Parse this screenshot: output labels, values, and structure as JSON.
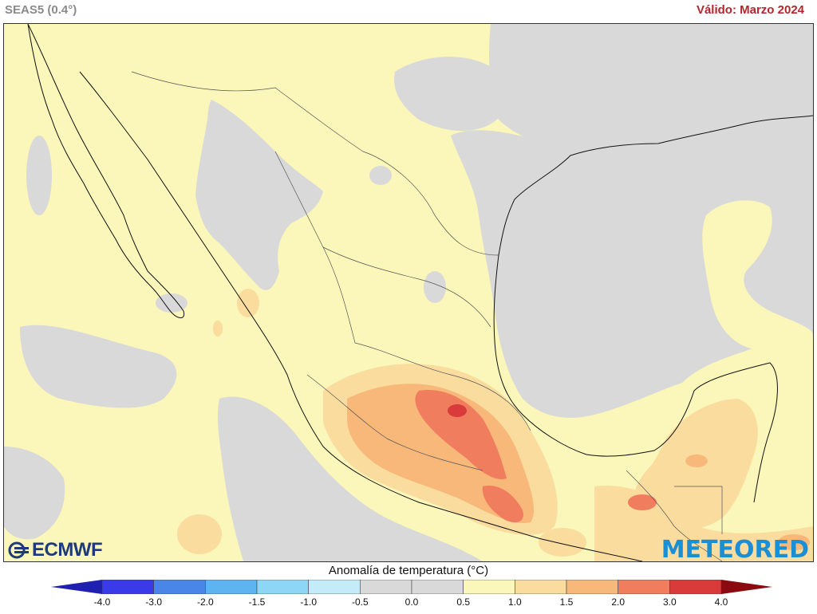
{
  "header": {
    "model": "SEAS5 (0.4°)",
    "valid": "Válido: Marzo 2024"
  },
  "logos": {
    "left": "ECMWF",
    "right": "METEORED"
  },
  "colorbar": {
    "title": "Anomalía de temperatura (°C)",
    "ticks": [
      "-4.0",
      "-3.0",
      "-2.0",
      "-1.5",
      "-1.0",
      "-0.5",
      "0.0",
      "0.5",
      "1.0",
      "1.5",
      "2.0",
      "3.0",
      "4.0"
    ],
    "colors": [
      "#3a3ae8",
      "#4a86e8",
      "#5eb4f0",
      "#8ed6f5",
      "#c4ecf8",
      "#d9d9d9",
      "#d9d9d9",
      "#fbf6b9",
      "#f9dc9e",
      "#f7b87a",
      "#f07d5e",
      "#d93a3a"
    ],
    "under_color": "#2020b0",
    "over_color": "#8b0a10"
  },
  "map": {
    "ocean_anomaly_color": "#fbf6b9",
    "neutral_color": "#d9d9d9",
    "warm_1_color": "#f9dc9e",
    "warm_2_color": "#f7b87a",
    "warm_3_color": "#f07d5e",
    "warm_4_color": "#d93a3a"
  }
}
